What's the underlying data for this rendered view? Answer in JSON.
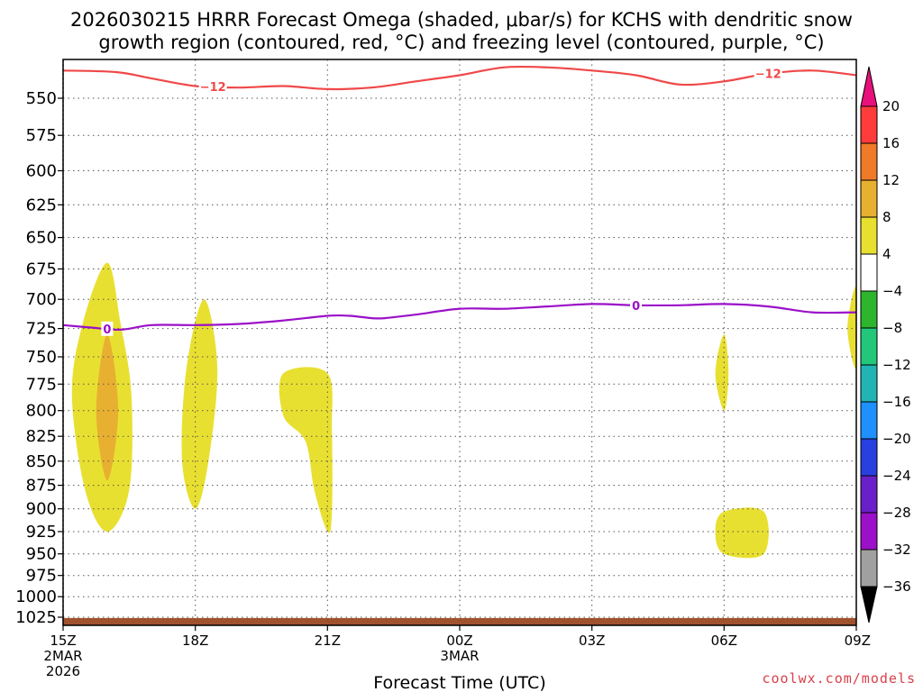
{
  "title_line1": "2026030215 HRRR Forecast Omega (shaded, μbar/s) for KCHS with dendritic snow",
  "title_line2": "growth region (contoured, red, °C) and freezing level (contoured, purple, °C)",
  "credit": "coolwx.com/models",
  "chart_data": {
    "type": "time-height cross section",
    "title": "2026030215 HRRR Forecast Omega (shaded, μbar/s) for KCHS with dendritic snow growth region (contoured, red, °C) and freezing level (contoured, purple, °C)",
    "xlabel": "Forecast Time (UTC)",
    "ylabel": "",
    "x_ticks": [
      {
        "hour": 0,
        "label": "15Z",
        "sublabel": "2MAR",
        "sublabel2": "2026"
      },
      {
        "hour": 3,
        "label": "18Z"
      },
      {
        "hour": 6,
        "label": "21Z"
      },
      {
        "hour": 9,
        "label": "00Z",
        "sublabel": "3MAR"
      },
      {
        "hour": 12,
        "label": "03Z"
      },
      {
        "hour": 15,
        "label": "06Z"
      },
      {
        "hour": 18,
        "label": "09Z"
      }
    ],
    "x_range_hours": [
      0,
      18
    ],
    "y_ticks": [
      550,
      575,
      600,
      625,
      650,
      675,
      700,
      725,
      750,
      775,
      800,
      825,
      850,
      875,
      900,
      925,
      950,
      975,
      1000,
      1025
    ],
    "y_range_mb": [
      525,
      1035
    ],
    "grid": true,
    "colorbar": {
      "labels": [
        "20",
        "16",
        "12",
        "8",
        "4",
        "−4",
        "−8",
        "−12",
        "−16",
        "−20",
        "−24",
        "−28",
        "−32",
        "−36"
      ],
      "colors": [
        "#ff3b3b",
        "#f07a28",
        "#e8b030",
        "#e8e030",
        "#ffffff",
        "#2db52d",
        "#22c77a",
        "#22b4b4",
        "#1e90ff",
        "#2840e0",
        "#6a20c8",
        "#9b10c8",
        "#a0a0a0"
      ],
      "top_arrow_color": "#e8107a",
      "bottom_arrow_color": "#000000"
    },
    "dendritic_contour": {
      "label": "−12",
      "color": "#f04848",
      "points": [
        [
          0,
          532
        ],
        [
          1.2,
          533
        ],
        [
          2,
          537
        ],
        [
          3,
          542
        ],
        [
          4,
          543
        ],
        [
          5,
          542
        ],
        [
          6,
          544
        ],
        [
          7,
          543
        ],
        [
          8,
          539
        ],
        [
          9,
          535
        ],
        [
          10,
          530
        ],
        [
          11,
          530
        ],
        [
          12,
          532
        ],
        [
          13,
          535
        ],
        [
          14,
          541
        ],
        [
          15,
          539
        ],
        [
          16,
          534
        ],
        [
          17,
          532
        ],
        [
          18,
          535
        ]
      ],
      "label_positions_hours": [
        3.4,
        16
      ]
    },
    "freezing_contour": {
      "label": "0",
      "color": "#9b10c8",
      "points": [
        [
          0,
          722
        ],
        [
          0.6,
          724
        ],
        [
          1.3,
          726
        ],
        [
          2,
          722
        ],
        [
          3,
          722
        ],
        [
          4,
          721
        ],
        [
          5,
          718
        ],
        [
          6,
          714
        ],
        [
          6.5,
          714
        ],
        [
          7,
          716
        ],
        [
          7.3,
          716
        ],
        [
          8,
          713
        ],
        [
          9,
          708
        ],
        [
          10,
          708
        ],
        [
          11,
          706
        ],
        [
          12,
          704
        ],
        [
          13,
          705
        ],
        [
          14,
          705
        ],
        [
          15,
          704
        ],
        [
          16,
          706
        ],
        [
          17,
          711
        ],
        [
          18,
          711
        ]
      ],
      "label_positions_hours": [
        1.0,
        13
      ]
    },
    "omega_regions": [
      {
        "level": "4 to 8",
        "color": "#e8e030",
        "points": [
          [
            0.2,
            785
          ],
          [
            0.45,
            720
          ],
          [
            1.0,
            670
          ],
          [
            1.3,
            720
          ],
          [
            1.55,
            785
          ],
          [
            1.5,
            880
          ],
          [
            1.0,
            925
          ],
          [
            0.5,
            880
          ]
        ]
      },
      {
        "level": "8 to 12",
        "color": "#e8b030",
        "points": [
          [
            0.75,
            800
          ],
          [
            1.0,
            730
          ],
          [
            1.25,
            800
          ],
          [
            1.0,
            870
          ]
        ]
      },
      {
        "level": "4 to 8",
        "color": "#e8e030",
        "points": [
          [
            2.8,
            760
          ],
          [
            3.2,
            700
          ],
          [
            3.5,
            760
          ],
          [
            3.3,
            850
          ],
          [
            3.0,
            900
          ],
          [
            2.7,
            850
          ]
        ]
      },
      {
        "level": "4 to 8",
        "color": "#e8e030",
        "points": [
          [
            5.0,
            765
          ],
          [
            6.0,
            765
          ],
          [
            6.1,
            820
          ],
          [
            6.1,
            905
          ],
          [
            6.0,
            925
          ],
          [
            5.7,
            880
          ],
          [
            5.5,
            830
          ],
          [
            5.0,
            805
          ]
        ]
      },
      {
        "level": "4 to 8",
        "color": "#e8e030",
        "points": [
          [
            14.8,
            765
          ],
          [
            15.0,
            730
          ],
          [
            15.1,
            765
          ],
          [
            15.0,
            800
          ]
        ]
      },
      {
        "level": "4 to 8",
        "color": "#e8e030",
        "points": [
          [
            14.8,
            925
          ],
          [
            15.0,
            903
          ],
          [
            15.9,
            903
          ],
          [
            15.9,
            950
          ],
          [
            15.0,
            950
          ]
        ]
      },
      {
        "level": "4 to 8",
        "color": "#e8e030",
        "points": [
          [
            17.8,
            725
          ],
          [
            18.0,
            690
          ],
          [
            18.0,
            760
          ]
        ]
      }
    ],
    "terrain": {
      "color": "#a0522d",
      "top_mb": 1026
    }
  }
}
